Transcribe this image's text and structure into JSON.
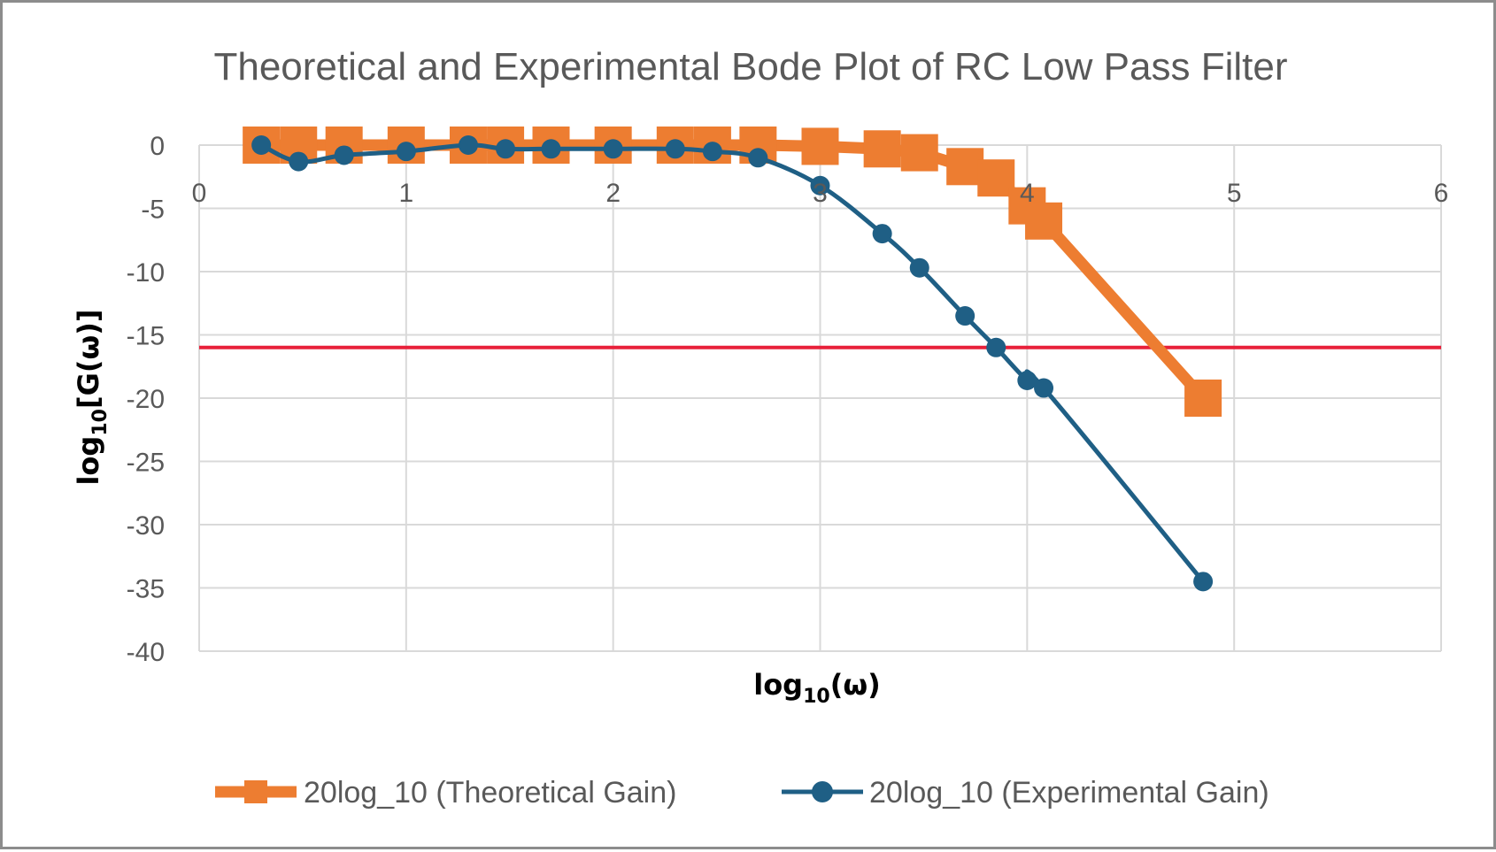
{
  "chart_data": {
    "type": "line",
    "title": "Theoretical and Experimental Bode Plot of RC Low Pass Filter",
    "xlabel": {
      "base": "log",
      "sub": "10",
      "rest": "(ω)"
    },
    "ylabel": {
      "base": "log",
      "sub": "10",
      "rest": "[G(ω)]"
    },
    "xlim": [
      0,
      6
    ],
    "ylim": [
      -40,
      0
    ],
    "x_ticks": [
      "0",
      "1",
      "2",
      "3",
      "4",
      "5",
      "6"
    ],
    "y_ticks": [
      "0",
      "-5",
      "-10",
      "-15",
      "-20",
      "-25",
      "-30",
      "-35",
      "-40"
    ],
    "grid": true,
    "legend_position": "bottom",
    "reference_line": {
      "y": -16,
      "color": "#e8203a"
    },
    "series": [
      {
        "name": "20log_10 (Theoretical Gain)",
        "color": "#ed7d31",
        "marker": "square",
        "smooth": false,
        "x": [
          0.3,
          0.48,
          0.7,
          1.0,
          1.3,
          1.48,
          1.7,
          2.0,
          2.3,
          2.48,
          2.7,
          3.0,
          3.3,
          3.48,
          3.7,
          3.85,
          4.0,
          4.08,
          4.85
        ],
        "y": [
          0.0,
          0.0,
          0.0,
          0.0,
          0.0,
          0.0,
          0.0,
          0.0,
          0.0,
          0.0,
          0.0,
          -0.1,
          -0.3,
          -0.6,
          -1.7,
          -2.6,
          -4.8,
          -6.0,
          -20.0
        ]
      },
      {
        "name": "20log_10 (Experimental Gain)",
        "color": "#1f5f85",
        "marker": "circle",
        "smooth": true,
        "x": [
          0.3,
          0.48,
          0.7,
          1.0,
          1.3,
          1.48,
          1.7,
          2.0,
          2.3,
          2.48,
          2.7,
          3.0,
          3.3,
          3.48,
          3.7,
          3.85,
          4.0,
          4.08,
          4.85
        ],
        "y": [
          0.0,
          -1.3,
          -0.8,
          -0.5,
          0.0,
          -0.3,
          -0.3,
          -0.3,
          -0.3,
          -0.5,
          -1.0,
          -3.2,
          -7.0,
          -9.7,
          -13.5,
          -16.0,
          -18.6,
          -19.2,
          -34.5
        ]
      }
    ]
  }
}
